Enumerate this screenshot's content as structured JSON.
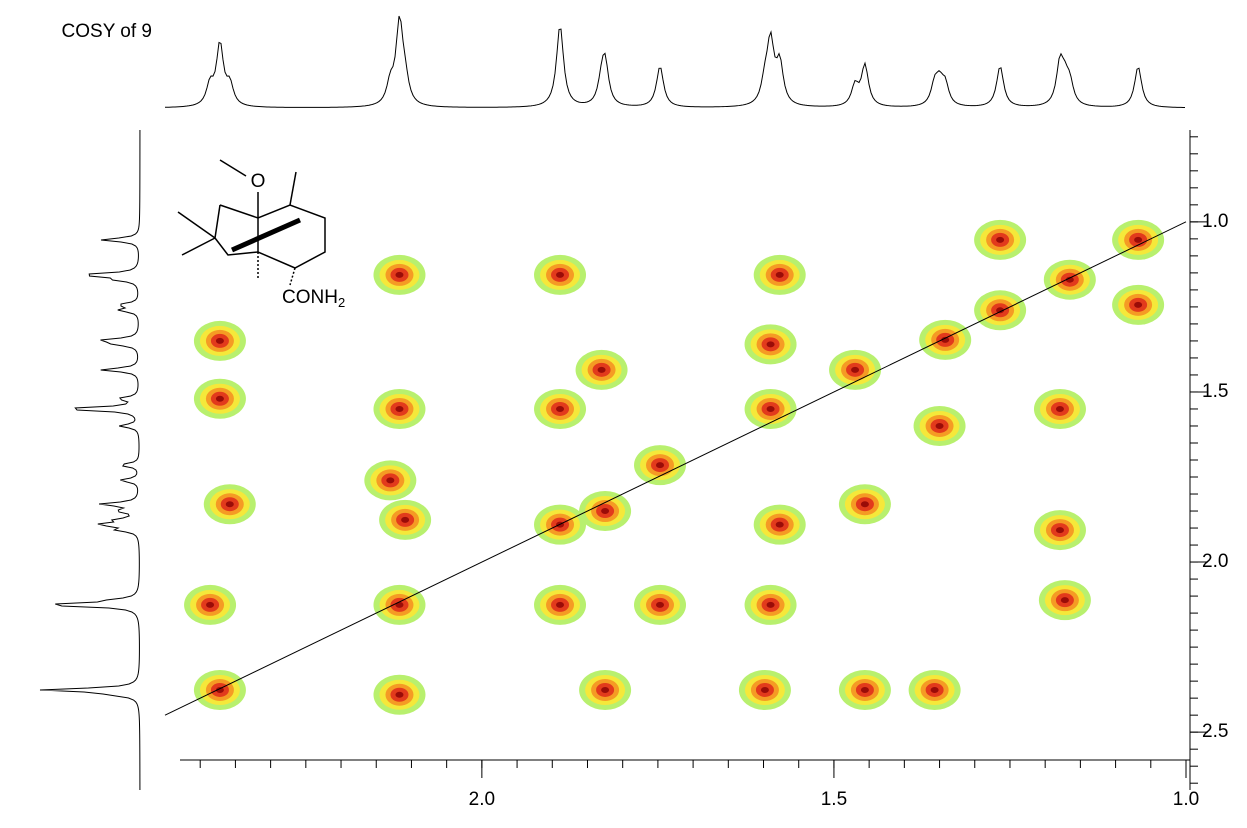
{
  "chart_data": {
    "type": "cosy",
    "title": "COSY of 9",
    "annotations": [
      "O",
      "CONH",
      "2"
    ],
    "xlim": [
      2.45,
      1.0
    ],
    "ylim": [
      0.73,
      2.67
    ],
    "xticks": [
      {
        "value": 2,
        "label": "2.0"
      },
      {
        "value": 1.5,
        "label": "1.5"
      },
      {
        "value": 1,
        "label": "1.0"
      }
    ],
    "yticks": [
      {
        "value": 1,
        "label": "1.0"
      },
      {
        "value": 1.5,
        "label": "1.5"
      },
      {
        "value": 2,
        "label": "2.0"
      },
      {
        "value": 2.5,
        "label": "2.5"
      }
    ],
    "minor_step": 0.05,
    "colors": [
      "#b8f06e",
      "#f5e83a",
      "#f59b24",
      "#e23a1c",
      "#9a0c08"
    ],
    "x": [
      1.264,
      1.068,
      1.165,
      1.264,
      1.068,
      1.342,
      1.47,
      1.35,
      1.59,
      1.59,
      1.747,
      1.747,
      2.13,
      2.117,
      1.889,
      2.372,
      2.372,
      2.372,
      2.117,
      1.889,
      1.83,
      1.889,
      2.117,
      2.358,
      2.386,
      2.117,
      1.889,
      1.825,
      1.598,
      1.456,
      1.357,
      1.59,
      1.577,
      1.456,
      1.179,
      1.172,
      1.179,
      1.577,
      2.109,
      1.825
    ],
    "values": [
      1.053,
      1.053,
      1.17,
      1.26,
      1.244,
      1.347,
      1.435,
      1.6,
      1.36,
      1.55,
      1.715,
      2.126,
      1.76,
      2.126,
      1.89,
      2.376,
      1.52,
      1.35,
      1.156,
      1.156,
      1.435,
      1.55,
      1.55,
      1.83,
      2.126,
      2.39,
      2.126,
      2.376,
      2.376,
      2.376,
      2.376,
      2.126,
      1.89,
      1.83,
      1.906,
      2.112,
      1.55,
      1.156,
      1.876,
      1.85
    ]
  }
}
